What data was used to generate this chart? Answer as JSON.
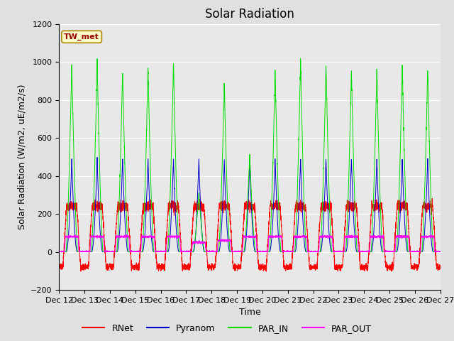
{
  "title": "Solar Radiation",
  "ylabel": "Solar Radiation (W/m2, uE/m2/s)",
  "xlabel": "Time",
  "ylim": [
    -200,
    1200
  ],
  "yticks": [
    -200,
    0,
    200,
    400,
    600,
    800,
    1000,
    1200
  ],
  "xtick_labels": [
    "Dec 12",
    "Dec 13",
    "Dec 14",
    "Dec 15",
    "Dec 16",
    "Dec 17",
    "Dec 18",
    "Dec 19",
    "Dec 20",
    "Dec 21",
    "Dec 22",
    "Dec 23",
    "Dec 24",
    "Dec 25",
    "Dec 26",
    "Dec 27"
  ],
  "station_label": "TW_met",
  "legend_entries": [
    "RNet",
    "Pyranom",
    "PAR_IN",
    "PAR_OUT"
  ],
  "line_colors": [
    "#ff0000",
    "#0000cc",
    "#00dd00",
    "#ff00ff"
  ],
  "fig_facecolor": "#e0e0e0",
  "plot_facecolor": "#e8e8e8",
  "num_days": 15,
  "rnet_base": -80,
  "rnet_peak": 320,
  "pyranom_peak": 490,
  "par_in_peaks": [
    1005,
    1010,
    960,
    980,
    1000,
    310,
    880,
    510,
    960,
    1020,
    990,
    960,
    965,
    985,
    960
  ],
  "par_out_peaks": [
    80,
    80,
    80,
    80,
    80,
    50,
    60,
    80,
    80,
    80,
    80,
    80,
    80,
    80,
    80
  ],
  "title_fontsize": 12,
  "label_fontsize": 9,
  "tick_fontsize": 8
}
